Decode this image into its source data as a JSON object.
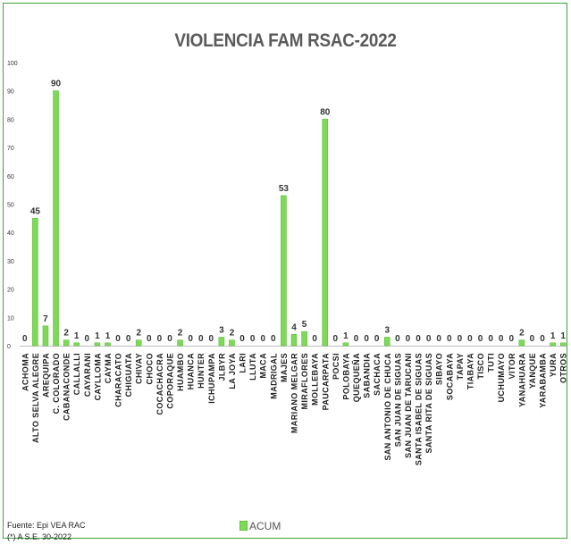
{
  "chart_data": {
    "type": "bar",
    "title": "VIOLENCIA FAM RSAC-2022",
    "ylim": [
      0,
      100
    ],
    "yticks": [
      0,
      10,
      20,
      30,
      40,
      50,
      60,
      70,
      80,
      90,
      100
    ],
    "categories": [
      "ACHOMA",
      "ALTO SELVA ALEGRE",
      "AREQUIPA",
      "C. COLORADO",
      "CABANACONDE",
      "CALLALLI",
      "CAYARANI",
      "CAYLLOMA",
      "CAYMA",
      "CHARACATO",
      "CHIGUATA",
      "CHIVAY",
      "CHOCO",
      "COCACHACRA",
      "COPORAQUE",
      "HUAMBO",
      "HUANCA",
      "HUNTER",
      "ICHUPAMPA",
      "JLBYR",
      "LA JOYA",
      "LARI",
      "LLUTA",
      "MACA",
      "MADRIGAL",
      "MAJES",
      "MARIANO MELGAR",
      "MIRAFLORES",
      "MOLLEBAYA",
      "PAUCARPATA",
      "POCSI",
      "POLOBAYA",
      "QUEQUEÑA",
      "SABANDIA",
      "SACHACA",
      "SAN ANTONIO DE CHUCA",
      "SAN JUAN DE SIGUAS",
      "SAN JUAN DE TARUCANI",
      "SANTA ISABEL DE SIGUAS",
      "SANTA RITA DE SIGUAS",
      "SIBAYO",
      "SOCABAYA",
      "TAPAY",
      "TIABAYA",
      "TISCO",
      "TUTI",
      "UCHUMAYO",
      "VITOR",
      "YANAHUARA",
      "YANQUE",
      "YARABAMBA",
      "YURA",
      "OTROS"
    ],
    "series": [
      {
        "name": "ACUM",
        "values": [
          0,
          45,
          7,
          90,
          2,
          1,
          0,
          1,
          1,
          0,
          0,
          2,
          0,
          0,
          0,
          2,
          0,
          0,
          0,
          3,
          2,
          0,
          0,
          0,
          0,
          53,
          4,
          5,
          0,
          80,
          0,
          1,
          0,
          0,
          0,
          3,
          0,
          0,
          0,
          0,
          0,
          0,
          0,
          0,
          0,
          0,
          0,
          0,
          2,
          0,
          0,
          1,
          1
        ]
      }
    ],
    "legend": "bottom",
    "bar_color": "#7ed957",
    "bar_edge_color": "#5fbf3a"
  },
  "footer": {
    "source": "Fuente: Epi VEA RAC",
    "note": "(*) A S.E. 30-2022",
    "legend_label": "ACUM"
  }
}
